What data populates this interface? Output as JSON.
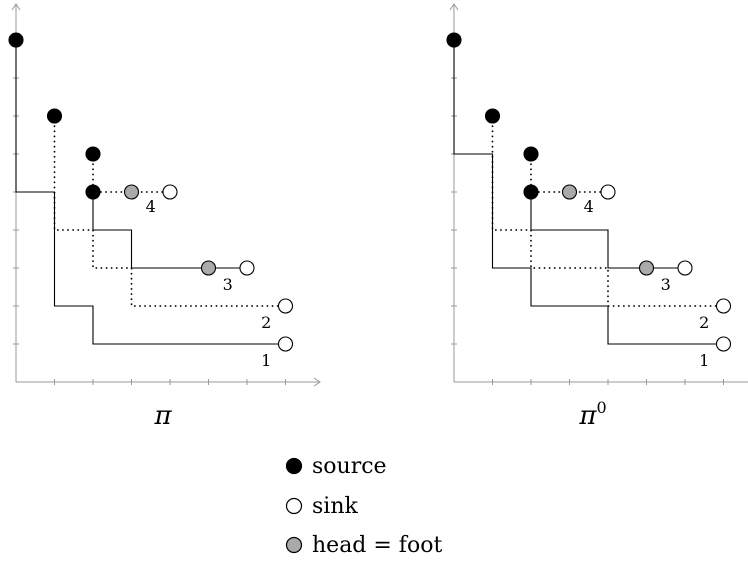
{
  "panels": [
    {
      "caption": "π",
      "caption_sup": "",
      "paths": [
        {
          "label": "1",
          "style": "solid",
          "points": [
            [
              0,
              9
            ],
            [
              0,
              5
            ],
            [
              1,
              5
            ],
            [
              1,
              2
            ],
            [
              2,
              2
            ],
            [
              2,
              1
            ],
            [
              7,
              1
            ]
          ]
        },
        {
          "label": "2",
          "style": "dotted",
          "points": [
            [
              1,
              7
            ],
            [
              1,
              4
            ],
            [
              2,
              4
            ],
            [
              2,
              3
            ],
            [
              3,
              3
            ],
            [
              3,
              2
            ],
            [
              7,
              2
            ]
          ]
        },
        {
          "label": "3",
          "style": "solid",
          "points": [
            [
              2,
              5
            ],
            [
              2,
              4
            ],
            [
              3,
              4
            ],
            [
              3,
              3
            ],
            [
              5,
              3
            ],
            [
              6,
              3
            ]
          ]
        },
        {
          "label": "4",
          "style": "dotted",
          "points": [
            [
              2,
              6
            ],
            [
              2,
              5
            ],
            [
              3,
              5
            ],
            [
              4,
              5
            ]
          ]
        }
      ],
      "sources": [
        [
          0,
          9
        ],
        [
          1,
          7
        ],
        [
          2,
          6
        ],
        [
          2,
          5
        ]
      ],
      "sinks": [
        [
          7,
          1
        ],
        [
          7,
          2
        ],
        [
          6,
          3
        ],
        [
          4,
          5
        ]
      ],
      "feet": [
        [
          5,
          3
        ],
        [
          3,
          5
        ]
      ],
      "labels": [
        {
          "text": "1",
          "at": [
            6.5,
            0.55
          ]
        },
        {
          "text": "2",
          "at": [
            6.5,
            1.55
          ]
        },
        {
          "text": "3",
          "at": [
            5.5,
            2.55
          ]
        },
        {
          "text": "4",
          "at": [
            3.5,
            4.6
          ]
        }
      ]
    },
    {
      "caption": "π",
      "caption_sup": "0",
      "paths": [
        {
          "label": "1",
          "style": "solid",
          "points": [
            [
              0,
              9
            ],
            [
              0,
              6
            ],
            [
              1,
              6
            ],
            [
              1,
              3
            ],
            [
              2,
              3
            ],
            [
              2,
              2
            ],
            [
              4,
              2
            ],
            [
              4,
              1
            ],
            [
              7,
              1
            ]
          ]
        },
        {
          "label": "2",
          "style": "dotted",
          "points": [
            [
              1,
              7
            ],
            [
              1,
              4
            ],
            [
              2,
              4
            ],
            [
              2,
              3
            ],
            [
              4,
              3
            ],
            [
              4,
              2
            ],
            [
              7,
              2
            ]
          ]
        },
        {
          "label": "3",
          "style": "solid",
          "points": [
            [
              2,
              5
            ],
            [
              2,
              4
            ],
            [
              4,
              4
            ],
            [
              4,
              3
            ],
            [
              5,
              3
            ],
            [
              6,
              3
            ]
          ]
        },
        {
          "label": "4",
          "style": "dotted",
          "points": [
            [
              2,
              6
            ],
            [
              2,
              5
            ],
            [
              3,
              5
            ],
            [
              4,
              5
            ]
          ]
        }
      ],
      "sources": [
        [
          0,
          9
        ],
        [
          1,
          7
        ],
        [
          2,
          6
        ],
        [
          2,
          5
        ]
      ],
      "sinks": [
        [
          7,
          1
        ],
        [
          7,
          2
        ],
        [
          6,
          3
        ],
        [
          4,
          5
        ]
      ],
      "feet": [
        [
          5,
          3
        ],
        [
          3,
          5
        ]
      ],
      "labels": [
        {
          "text": "1",
          "at": [
            6.5,
            0.55
          ]
        },
        {
          "text": "2",
          "at": [
            6.5,
            1.55
          ]
        },
        {
          "text": "3",
          "at": [
            5.5,
            2.55
          ]
        },
        {
          "text": "4",
          "at": [
            3.5,
            4.6
          ]
        }
      ]
    }
  ],
  "legend": [
    {
      "kind": "source",
      "label": "source",
      "fill": "#000000"
    },
    {
      "kind": "sink",
      "label": "sink",
      "fill": "#ffffff"
    },
    {
      "kind": "foot",
      "label": "head = foot",
      "fill": "#aaaaaa"
    }
  ],
  "colors": {
    "ink": "#000000",
    "foot": "#aaaaaa",
    "axis": "#9a9a9a"
  }
}
